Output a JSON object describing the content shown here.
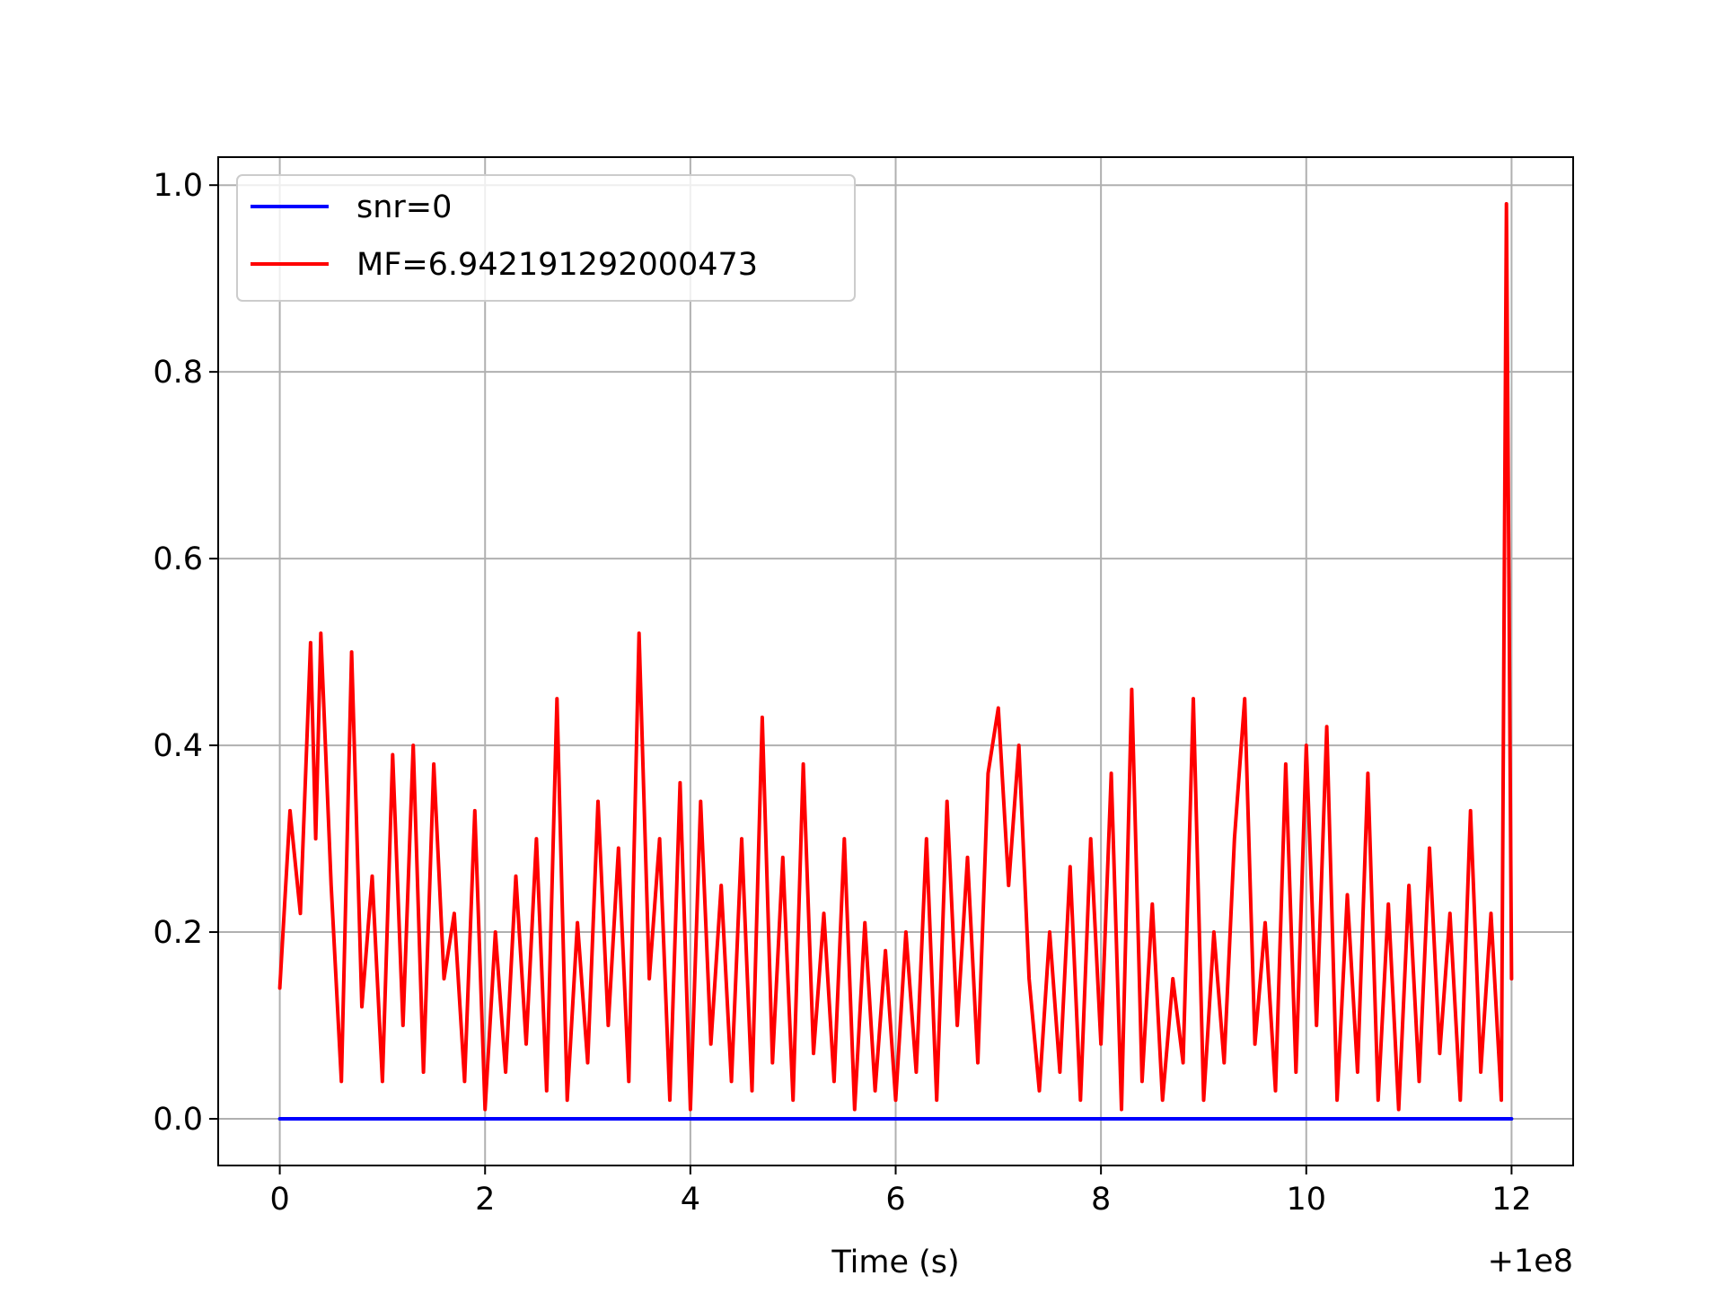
{
  "chart_data": {
    "type": "line",
    "title": "",
    "xlabel": "Time (s)",
    "ylabel": "",
    "x_offset_label": "+1e8",
    "xlim": [
      -0.6,
      12.6
    ],
    "ylim": [
      -0.05,
      1.03
    ],
    "x_ticks": [
      0,
      2,
      4,
      6,
      8,
      10,
      12
    ],
    "x_tick_labels": [
      "0",
      "2",
      "4",
      "6",
      "8",
      "10",
      "12"
    ],
    "y_ticks": [
      0.0,
      0.2,
      0.4,
      0.6,
      0.8,
      1.0
    ],
    "y_tick_labels": [
      "0.0",
      "0.2",
      "0.4",
      "0.6",
      "0.8",
      "1.0"
    ],
    "grid": true,
    "legend_position": "top-left",
    "series": [
      {
        "name": "snr=0",
        "color": "#0000ff",
        "x": [
          0,
          12
        ],
        "y": [
          0.0,
          0.0
        ]
      },
      {
        "name": "MF=6.942191292000473",
        "color": "#ff0000",
        "x": [
          0.0,
          0.1,
          0.2,
          0.3,
          0.35,
          0.4,
          0.5,
          0.6,
          0.7,
          0.8,
          0.9,
          1.0,
          1.1,
          1.2,
          1.3,
          1.4,
          1.5,
          1.6,
          1.7,
          1.8,
          1.9,
          2.0,
          2.1,
          2.2,
          2.3,
          2.4,
          2.5,
          2.6,
          2.7,
          2.8,
          2.9,
          3.0,
          3.1,
          3.2,
          3.3,
          3.4,
          3.5,
          3.6,
          3.7,
          3.8,
          3.9,
          4.0,
          4.1,
          4.2,
          4.3,
          4.4,
          4.5,
          4.6,
          4.7,
          4.8,
          4.9,
          5.0,
          5.1,
          5.2,
          5.3,
          5.4,
          5.5,
          5.6,
          5.7,
          5.8,
          5.9,
          6.0,
          6.1,
          6.2,
          6.3,
          6.4,
          6.5,
          6.6,
          6.7,
          6.8,
          6.9,
          7.0,
          7.1,
          7.2,
          7.3,
          7.4,
          7.5,
          7.6,
          7.7,
          7.8,
          7.9,
          8.0,
          8.1,
          8.2,
          8.3,
          8.4,
          8.5,
          8.6,
          8.7,
          8.8,
          8.9,
          9.0,
          9.1,
          9.2,
          9.3,
          9.4,
          9.5,
          9.6,
          9.7,
          9.8,
          9.9,
          10.0,
          10.1,
          10.2,
          10.3,
          10.4,
          10.5,
          10.6,
          10.7,
          10.8,
          10.9,
          11.0,
          11.1,
          11.2,
          11.3,
          11.4,
          11.5,
          11.6,
          11.7,
          11.8,
          11.9,
          11.95,
          12.0
        ],
        "y": [
          0.14,
          0.33,
          0.22,
          0.51,
          0.3,
          0.52,
          0.25,
          0.04,
          0.5,
          0.12,
          0.26,
          0.04,
          0.39,
          0.1,
          0.4,
          0.05,
          0.38,
          0.15,
          0.22,
          0.04,
          0.33,
          0.01,
          0.2,
          0.05,
          0.26,
          0.08,
          0.3,
          0.03,
          0.45,
          0.02,
          0.21,
          0.06,
          0.34,
          0.1,
          0.29,
          0.04,
          0.52,
          0.15,
          0.3,
          0.02,
          0.36,
          0.01,
          0.34,
          0.08,
          0.25,
          0.04,
          0.3,
          0.03,
          0.43,
          0.06,
          0.28,
          0.02,
          0.38,
          0.07,
          0.22,
          0.04,
          0.3,
          0.01,
          0.21,
          0.03,
          0.18,
          0.02,
          0.2,
          0.05,
          0.3,
          0.02,
          0.34,
          0.1,
          0.28,
          0.06,
          0.37,
          0.44,
          0.25,
          0.4,
          0.15,
          0.03,
          0.2,
          0.05,
          0.27,
          0.02,
          0.3,
          0.08,
          0.37,
          0.01,
          0.46,
          0.04,
          0.23,
          0.02,
          0.15,
          0.06,
          0.45,
          0.02,
          0.2,
          0.06,
          0.3,
          0.45,
          0.08,
          0.21,
          0.03,
          0.38,
          0.05,
          0.4,
          0.1,
          0.42,
          0.02,
          0.24,
          0.05,
          0.37,
          0.02,
          0.23,
          0.01,
          0.25,
          0.04,
          0.29,
          0.07,
          0.22,
          0.02,
          0.33,
          0.05,
          0.22,
          0.02,
          0.98,
          0.15
        ]
      }
    ]
  }
}
